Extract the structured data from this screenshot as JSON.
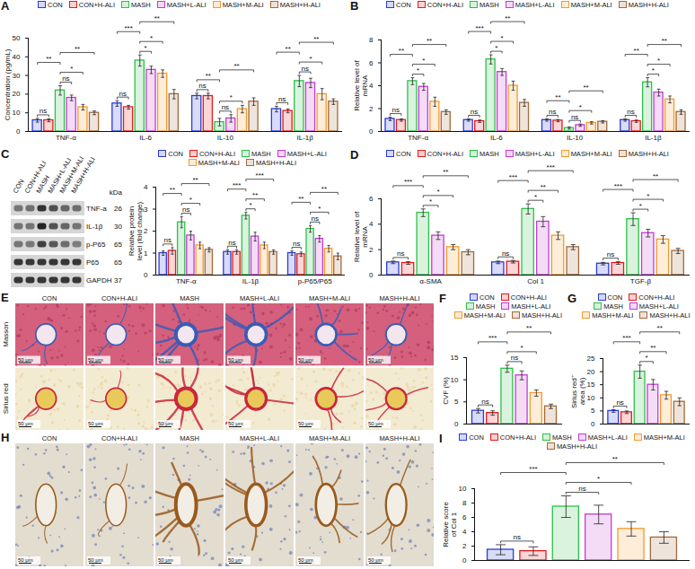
{
  "chart_data": [
    {
      "panel": "A",
      "type": "bar",
      "ylabel": "Concentration (pg/mL)",
      "categories": [
        "TNF-α",
        "IL-6",
        "IL-10",
        "IL-1β"
      ],
      "series": [
        {
          "name": "CON",
          "color": "#2b3bd6",
          "values": [
            6,
            15,
            19,
            12
          ],
          "errors": [
            1,
            1.5,
            1.5,
            1.5
          ]
        },
        {
          "name": "CON+H-ALI",
          "color": "#e31a1c",
          "values": [
            6,
            13,
            19,
            11
          ],
          "errors": [
            0.8,
            1,
            1.5,
            1
          ]
        },
        {
          "name": "MASH",
          "color": "#2fbf4a",
          "values": [
            22,
            38,
            5,
            27
          ],
          "errors": [
            2.5,
            3,
            2,
            3
          ]
        },
        {
          "name": "MASH+L-ALI",
          "color": "#c43bd1",
          "values": [
            18,
            33,
            7,
            26
          ],
          "errors": [
            1.5,
            2,
            2,
            2.5
          ]
        },
        {
          "name": "MASH+M-ALI",
          "color": "#f39a2b",
          "values": [
            13,
            31,
            12,
            20
          ],
          "errors": [
            1.5,
            2,
            2,
            3
          ]
        },
        {
          "name": "MASH+H-ALI",
          "color": "#a36a3a",
          "values": [
            10,
            20,
            16,
            16
          ],
          "errors": [
            1,
            2.5,
            2,
            1.5
          ]
        }
      ],
      "ylim": [
        0,
        50
      ],
      "yticks": [
        0,
        10,
        20,
        30,
        40,
        50
      ],
      "legend": "top",
      "comparisons": [
        [
          "CON",
          "CON+H-ALI"
        ],
        [
          "CON",
          "MASH"
        ],
        [
          "MASH",
          "MASH+L-ALI"
        ],
        [
          "MASH",
          "MASH+M-ALI"
        ],
        [
          "MASH",
          "MASH+H-ALI"
        ]
      ],
      "significance": [
        [
          "ns",
          "**",
          "ns",
          "*",
          "**"
        ],
        [
          "ns",
          "***",
          "*",
          "*",
          "**"
        ],
        [
          "ns",
          "**",
          "ns",
          "*",
          "**"
        ],
        [
          "ns",
          "**",
          "ns",
          "*",
          "**"
        ]
      ]
    },
    {
      "panel": "B",
      "type": "bar",
      "ylabel": "Relative level of mRNA",
      "categories": [
        "TNF-α",
        "IL-6",
        "IL-10",
        "IL-1β"
      ],
      "series": [
        {
          "name": "CON",
          "color": "#2b3bd6",
          "values": [
            1.1,
            1.0,
            1.0,
            1.0
          ],
          "errors": [
            0.15,
            0.1,
            0.1,
            0.1
          ]
        },
        {
          "name": "CON+H-ALI",
          "color": "#e31a1c",
          "values": [
            1.0,
            0.9,
            0.95,
            0.9
          ],
          "errors": [
            0.1,
            0.1,
            0.1,
            0.1
          ]
        },
        {
          "name": "MASH",
          "color": "#2fbf4a",
          "values": [
            4.4,
            6.3,
            0.3,
            4.3
          ],
          "errors": [
            0.3,
            0.4,
            0.1,
            0.4
          ]
        },
        {
          "name": "MASH+L-ALI",
          "color": "#c43bd1",
          "values": [
            3.9,
            5.2,
            0.55,
            3.4
          ],
          "errors": [
            0.3,
            0.3,
            0.1,
            0.3
          ]
        },
        {
          "name": "MASH+M-ALI",
          "color": "#f39a2b",
          "values": [
            2.6,
            4.0,
            0.75,
            2.8
          ],
          "errors": [
            0.4,
            0.4,
            0.1,
            0.3
          ]
        },
        {
          "name": "MASH+H-ALI",
          "color": "#a36a3a",
          "values": [
            1.7,
            2.5,
            0.85,
            1.7
          ],
          "errors": [
            0.2,
            0.3,
            0.1,
            0.2
          ]
        }
      ],
      "ylim": [
        0,
        8
      ],
      "yticks": [
        0,
        2,
        4,
        6,
        8
      ],
      "legend": "top",
      "comparisons": [
        [
          "CON",
          "CON+H-ALI"
        ],
        [
          "CON",
          "MASH"
        ],
        [
          "MASH",
          "MASH+L-ALI"
        ],
        [
          "MASH",
          "MASH+M-ALI"
        ],
        [
          "MASH",
          "MASH+H-ALI"
        ]
      ],
      "significance": [
        [
          "ns",
          "**",
          "*",
          "*",
          "**"
        ],
        [
          "ns",
          "***",
          "*",
          "*",
          "**"
        ],
        [
          "ns",
          "**",
          "ns",
          "*",
          "**"
        ],
        [
          "ns",
          "**",
          "*",
          "*",
          "**"
        ]
      ]
    },
    {
      "type": "bar",
      "ylabel": "Relative protein level (fold change)",
      "categories": [
        "TNF-α",
        "IL-1β",
        "p-P65/P65"
      ],
      "series": [
        {
          "name": "CON",
          "color": "#2b3bd6",
          "values": [
            1.0,
            1.05,
            1.0
          ],
          "errors": [
            0.1,
            0.1,
            0.1
          ]
        },
        {
          "name": "CON+H-ALI",
          "color": "#e31a1c",
          "values": [
            1.1,
            1.05,
            0.95
          ],
          "errors": [
            0.15,
            0.1,
            0.1
          ]
        },
        {
          "name": "MASH",
          "color": "#2fbf4a",
          "values": [
            2.4,
            2.7,
            2.1
          ],
          "errors": [
            0.25,
            0.15,
            0.15
          ]
        },
        {
          "name": "MASH+L-ALI",
          "color": "#c43bd1",
          "values": [
            1.8,
            1.75,
            1.65
          ],
          "errors": [
            0.2,
            0.2,
            0.15
          ]
        },
        {
          "name": "MASH+M-ALI",
          "color": "#f39a2b",
          "values": [
            1.35,
            1.35,
            1.2
          ],
          "errors": [
            0.15,
            0.15,
            0.15
          ]
        },
        {
          "name": "MASH+H-ALI",
          "color": "#a36a3a",
          "values": [
            1.15,
            1.05,
            0.85
          ],
          "errors": [
            0.1,
            0.1,
            0.15
          ]
        }
      ],
      "ylim": [
        0,
        4
      ],
      "yticks": [
        0,
        1,
        2,
        3,
        4
      ],
      "legend": "top",
      "comparisons": [
        [
          "CON",
          "CON+H-ALI"
        ],
        [
          "CON",
          "MASH"
        ],
        [
          "MASH",
          "MASH+L-ALI"
        ],
        [
          "MASH",
          "MASH+M-ALI"
        ],
        [
          "MASH",
          "MASH+H-ALI"
        ]
      ],
      "significance": [
        [
          "ns",
          "**",
          "ns",
          "*",
          "**"
        ],
        [
          "ns",
          "***",
          "*",
          "**",
          "***"
        ],
        [
          "ns",
          "**",
          "ns",
          "*",
          "**"
        ]
      ]
    },
    {
      "panel": "D",
      "type": "bar",
      "ylabel": "Relative level of mRNA",
      "categories": [
        "α-SMA",
        "Col 1",
        "TGF-β"
      ],
      "series": [
        {
          "name": "CON",
          "color": "#2b3bd6",
          "values": [
            1.0,
            1.0,
            0.9
          ],
          "errors": [
            0.1,
            0.1,
            0.1
          ]
        },
        {
          "name": "CON+H-ALI",
          "color": "#e31a1c",
          "values": [
            0.95,
            1.05,
            0.95
          ],
          "errors": [
            0.1,
            0.1,
            0.1
          ]
        },
        {
          "name": "MASH",
          "color": "#2fbf4a",
          "values": [
            4.9,
            5.2,
            4.4
          ],
          "errors": [
            0.3,
            0.4,
            0.5
          ]
        },
        {
          "name": "MASH+L-ALI",
          "color": "#c43bd1",
          "values": [
            3.1,
            4.2,
            3.3
          ],
          "errors": [
            0.3,
            0.4,
            0.3
          ]
        },
        {
          "name": "MASH+M-ALI",
          "color": "#f39a2b",
          "values": [
            2.2,
            3.1,
            2.8
          ],
          "errors": [
            0.2,
            0.3,
            0.3
          ]
        },
        {
          "name": "MASH+H-ALI",
          "color": "#a36a3a",
          "values": [
            1.8,
            2.2,
            1.9
          ],
          "errors": [
            0.2,
            0.2,
            0.2
          ]
        }
      ],
      "ylim": [
        0,
        6
      ],
      "yticks": [
        0,
        2,
        4,
        6
      ],
      "legend": "top",
      "comparisons": [
        [
          "CON",
          "CON+H-ALI"
        ],
        [
          "CON",
          "MASH"
        ],
        [
          "MASH",
          "MASH+L-ALI"
        ],
        [
          "MASH",
          "MASH+M-ALI"
        ],
        [
          "MASH",
          "MASH+H-ALI"
        ]
      ],
      "significance": [
        [
          "ns",
          "***",
          "*",
          "*",
          "**"
        ],
        [
          "ns",
          "***",
          "*",
          "**",
          "***"
        ],
        [
          "ns",
          "***",
          "*",
          "*",
          "**"
        ]
      ]
    },
    {
      "panel": "F",
      "type": "bar",
      "ylabel": "CVF (%)",
      "categories": [
        "CON",
        "CON+H-ALI",
        "MASH",
        "MASH+L-ALI",
        "MASH+M-ALI",
        "MASH+H-ALI"
      ],
      "values": [
        3,
        2.5,
        12.5,
        11,
        7,
        4
      ],
      "errors": [
        0.5,
        0.5,
        0.8,
        1,
        0.7,
        0.5
      ],
      "colors": [
        "#2b3bd6",
        "#e31a1c",
        "#2fbf4a",
        "#c43bd1",
        "#f39a2b",
        "#a36a3a"
      ],
      "ylim": [
        0,
        15
      ],
      "yticks": [
        0,
        5,
        10,
        15
      ],
      "tick_labels": "y",
      "legend": "top",
      "comparisons": [
        [
          "CON",
          "CON+H-ALI"
        ],
        [
          "CON",
          "MASH"
        ],
        [
          "MASH",
          "MASH+L-ALI"
        ],
        [
          "MASH",
          "MASH+M-ALI"
        ],
        [
          "MASH",
          "MASH+H-ALI"
        ]
      ],
      "significance": [
        "ns",
        "***",
        "ns",
        "*",
        "**"
      ]
    },
    {
      "panel": "G",
      "type": "bar",
      "ylabel": "Sirius red⁺ area (%)",
      "categories": [
        "CON",
        "CON+H-ALI",
        "MASH",
        "MASH+L-ALI",
        "MASH+M-ALI",
        "MASH+H-ALI"
      ],
      "values": [
        5,
        4.5,
        20,
        15,
        11,
        8.5
      ],
      "errors": [
        0.5,
        0.5,
        2.5,
        2,
        1.5,
        1.5
      ],
      "colors": [
        "#2b3bd6",
        "#e31a1c",
        "#2fbf4a",
        "#c43bd1",
        "#f39a2b",
        "#a36a3a"
      ],
      "ylim": [
        0,
        25
      ],
      "yticks": [
        0,
        5,
        10,
        15,
        20,
        25
      ],
      "tick_labels": "y",
      "legend": "top",
      "comparisons": [
        [
          "CON",
          "CON+H-ALI"
        ],
        [
          "CON",
          "MASH"
        ],
        [
          "MASH",
          "MASH+L-ALI"
        ],
        [
          "MASH",
          "MASH+M-ALI"
        ],
        [
          "MASH",
          "MASH+H-ALI"
        ]
      ],
      "significance": [
        "ns",
        "***",
        "*",
        "**",
        "**"
      ]
    },
    {
      "panel": "I",
      "type": "bar",
      "ylabel": "Relative score of Col 1",
      "categories": [
        "CON",
        "CON+H-ALI",
        "MASH",
        "MASH+L-ALI",
        "MASH+M-ALI",
        "MASH+H-ALI"
      ],
      "values": [
        1.5,
        1.3,
        7.5,
        6.4,
        4.4,
        3.2
      ],
      "errors": [
        0.7,
        0.6,
        1.5,
        1.3,
        1,
        0.8
      ],
      "colors": [
        "#2b3bd6",
        "#e31a1c",
        "#2fbf4a",
        "#c43bd1",
        "#f39a2b",
        "#a36a3a"
      ],
      "ylim": [
        0,
        10
      ],
      "yticks": [
        0,
        2,
        4,
        6,
        8,
        10
      ],
      "tick_labels": "y",
      "legend": "top",
      "comparisons": [
        [
          "CON",
          "CON+H-ALI"
        ],
        [
          "CON",
          "MASH"
        ],
        [
          "MASH",
          "MASH+L-ALI"
        ],
        [
          "MASH",
          "MASH+M-ALI"
        ],
        [
          "MASH",
          "MASH+H-ALI"
        ]
      ],
      "significance": [
        "ns",
        "***",
        "ns",
        "*",
        "**"
      ]
    }
  ],
  "blot": {
    "panel": "C",
    "lanes": [
      "CON",
      "CON+H-ALI",
      "MASH",
      "MASH+L-ALI",
      "MASH+M-ALI",
      "MASH+H-ALI"
    ],
    "unit": "kDa",
    "proteins": [
      {
        "name": "TNF-a",
        "kDa": 26
      },
      {
        "name": "IL-1β",
        "kDa": 30
      },
      {
        "name": "p-P65",
        "kDa": 65
      },
      {
        "name": "P65",
        "kDa": 65
      },
      {
        "name": "GAPDH",
        "kDa": 37
      }
    ]
  },
  "micrographs": [
    {
      "panel": "E",
      "columns": [
        "CON",
        "CON+H-ALI",
        "MASH",
        "MASH+L-ALI",
        "MASH+M-ALI",
        "MASH+H-ALI"
      ],
      "rows": [
        "Masson",
        "Sirius red"
      ],
      "scale_bar": "50 μm"
    },
    {
      "panel": "H",
      "columns": [
        "CON",
        "CON+H-ALI",
        "MASH",
        "MASH+L-ALI",
        "MASH+M-ALI",
        "MASH+H-ALI"
      ],
      "rows": [
        null
      ],
      "scale_bar": "50 μm"
    }
  ]
}
